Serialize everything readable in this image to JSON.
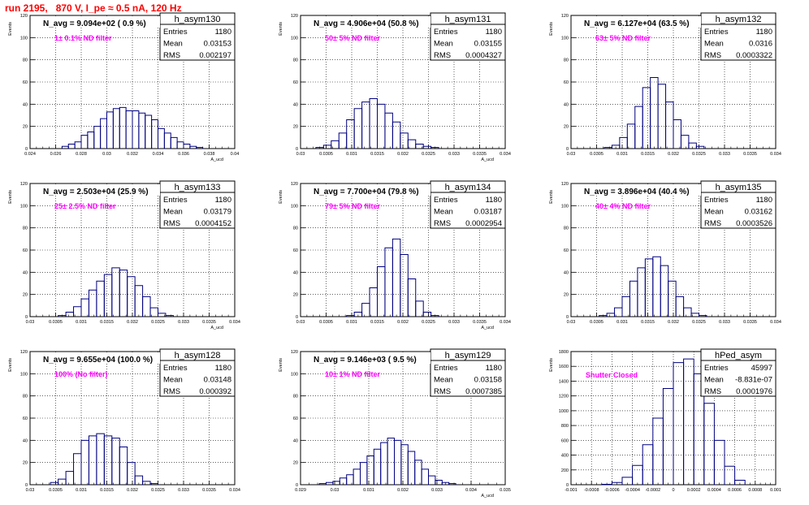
{
  "run_title": "run 2195,   870 V, I_pe ≈ 0.5 nA, 120 Hz",
  "stat_labels": {
    "entries": "Entries",
    "mean": "Mean",
    "rms": "RMS"
  },
  "colors": {
    "title": "#ff0000",
    "histogram": "#000080",
    "annotation": "#ff00ff",
    "grid": "#000000"
  },
  "chart_data": [
    {
      "type": "bar",
      "name": "h_asym130",
      "headline": "N_avg = 9.094e+02 ( 0.9 %)",
      "annotation": "1± 0.1% ND filter",
      "entries": "1180",
      "mean": "0.03153",
      "rms": "0.002197",
      "xlabel": "A_ucd",
      "ylabel": "Events",
      "xlim": [
        0.024,
        0.04
      ],
      "ylim": [
        0,
        120
      ],
      "xticks": [
        "0.024",
        "0.026",
        "0.028",
        "0.03",
        "0.032",
        "0.034",
        "0.036",
        "0.038",
        "0.04"
      ],
      "yticks": [
        "0",
        "20",
        "40",
        "60",
        "80",
        "100",
        "120"
      ],
      "centers": [
        0.02675,
        0.02725,
        0.02775,
        0.02825,
        0.02875,
        0.02925,
        0.02975,
        0.03025,
        0.03075,
        0.03125,
        0.03175,
        0.03225,
        0.03275,
        0.03325,
        0.03375,
        0.03425,
        0.03475,
        0.03525,
        0.03575,
        0.03625,
        0.03675,
        0.03725
      ],
      "values": [
        2,
        4,
        6,
        12,
        15,
        20,
        27,
        33,
        36,
        37,
        34,
        34,
        32,
        30,
        26,
        18,
        14,
        10,
        6,
        4,
        2,
        1
      ]
    },
    {
      "type": "bar",
      "name": "h_asym131",
      "headline": "N_avg = 4.906e+04 (50.8 %)",
      "annotation": "50± 5% ND filter",
      "entries": "1180",
      "mean": "0.03155",
      "rms": "0.0004327",
      "xlabel": "A_ucd",
      "ylabel": "Events",
      "xlim": [
        0.03,
        0.034
      ],
      "ylim": [
        0,
        120
      ],
      "xticks": [
        "0.03",
        "0.0305",
        "0.031",
        "0.0315",
        "0.032",
        "0.0325",
        "0.033",
        "0.0335",
        "0.034"
      ],
      "yticks": [
        "0",
        "20",
        "40",
        "60",
        "80",
        "100",
        "120"
      ],
      "centers": [
        0.030375,
        0.030525,
        0.030675,
        0.030825,
        0.030975,
        0.031125,
        0.031275,
        0.031425,
        0.031575,
        0.031725,
        0.031875,
        0.032025,
        0.032175,
        0.032325,
        0.032475,
        0.032625
      ],
      "values": [
        1,
        3,
        7,
        14,
        26,
        36,
        42,
        45,
        40,
        32,
        24,
        14,
        8,
        4,
        2,
        1
      ]
    },
    {
      "type": "bar",
      "name": "h_asym132",
      "headline": "N_avg = 6.127e+04 (63.5 %)",
      "annotation": "63± 5% ND filter",
      "entries": "1180",
      "mean": "0.0316",
      "rms": "0.0003322",
      "xlabel": "",
      "ylabel": "Events",
      "xlim": [
        0.03,
        0.034
      ],
      "ylim": [
        0,
        120
      ],
      "xticks": [
        "0.03",
        "0.0305",
        "0.031",
        "0.0315",
        "0.032",
        "0.0325",
        "0.033",
        "0.0335",
        "0.034"
      ],
      "yticks": [
        "0",
        "20",
        "40",
        "60",
        "80",
        "100",
        "120"
      ],
      "centers": [
        0.030725,
        0.030875,
        0.031025,
        0.031175,
        0.031325,
        0.031475,
        0.031625,
        0.031775,
        0.031925,
        0.032075,
        0.032225,
        0.032375,
        0.032525
      ],
      "values": [
        1,
        3,
        10,
        22,
        38,
        55,
        64,
        58,
        42,
        26,
        12,
        5,
        2
      ]
    },
    {
      "type": "bar",
      "name": "h_asym133",
      "headline": "N_avg = 2.503e+04 (25.9 %)",
      "annotation": "25± 2.5% ND filter",
      "entries": "1180",
      "mean": "0.03179",
      "rms": "0.0004152",
      "xlabel": "A_ucd",
      "ylabel": "Events",
      "xlim": [
        0.03,
        0.034
      ],
      "ylim": [
        0,
        120
      ],
      "xticks": [
        "0.03",
        "0.0305",
        "0.031",
        "0.0315",
        "0.032",
        "0.0325",
        "0.033",
        "0.0335",
        "0.034"
      ],
      "yticks": [
        "0",
        "20",
        "40",
        "60",
        "80",
        "100",
        "120"
      ],
      "centers": [
        0.030625,
        0.030775,
        0.030925,
        0.031075,
        0.031225,
        0.031375,
        0.031525,
        0.031675,
        0.031825,
        0.031975,
        0.032125,
        0.032275,
        0.032425,
        0.032575,
        0.032725
      ],
      "values": [
        1,
        4,
        9,
        16,
        24,
        32,
        38,
        44,
        42,
        36,
        28,
        18,
        8,
        3,
        1
      ]
    },
    {
      "type": "bar",
      "name": "h_asym134",
      "headline": "N_avg = 7.700e+04 (79.8 %)",
      "annotation": "79± 5% ND filter",
      "entries": "1180",
      "mean": "0.03187",
      "rms": "0.0002954",
      "xlabel": "A_ucd",
      "ylabel": "Events",
      "xlim": [
        0.03,
        0.034
      ],
      "ylim": [
        0,
        120
      ],
      "xticks": [
        "0.03",
        "0.0305",
        "0.031",
        "0.0315",
        "0.032",
        "0.0325",
        "0.033",
        "0.0335",
        "0.034"
      ],
      "yticks": [
        "0",
        "20",
        "40",
        "60",
        "80",
        "100",
        "120"
      ],
      "centers": [
        0.030975,
        0.031125,
        0.031275,
        0.031425,
        0.031575,
        0.031725,
        0.031875,
        0.032025,
        0.032175,
        0.032325,
        0.032475,
        0.032625
      ],
      "values": [
        1,
        4,
        12,
        26,
        45,
        62,
        70,
        56,
        34,
        14,
        4,
        1
      ]
    },
    {
      "type": "bar",
      "name": "h_asym135",
      "headline": "N_avg = 3.896e+04 (40.4 %)",
      "annotation": "40± 4% ND filter",
      "entries": "1180",
      "mean": "0.03162",
      "rms": "0.0003526",
      "xlabel": "",
      "ylabel": "Events",
      "xlim": [
        0.03,
        0.034
      ],
      "ylim": [
        0,
        120
      ],
      "xticks": [
        "0.03",
        "0.0305",
        "0.031",
        "0.0315",
        "0.032",
        "0.0325",
        "0.033",
        "0.0335",
        "0.034"
      ],
      "yticks": [
        "0",
        "20",
        "40",
        "60",
        "80",
        "100",
        "120"
      ],
      "centers": [
        0.030625,
        0.030775,
        0.030925,
        0.031075,
        0.031225,
        0.031375,
        0.031525,
        0.031675,
        0.031825,
        0.031975,
        0.032125,
        0.032275,
        0.032425,
        0.032575
      ],
      "values": [
        1,
        3,
        8,
        18,
        32,
        44,
        52,
        54,
        46,
        32,
        18,
        8,
        3,
        1
      ]
    },
    {
      "type": "bar",
      "name": "h_asym128",
      "headline": "N_avg = 9.655e+04 (100.0 %)",
      "annotation": "100% (No filter)",
      "entries": "1180",
      "mean": "0.03148",
      "rms": "0.000392",
      "xlabel": "",
      "ylabel": "Events",
      "xlim": [
        0.03,
        0.034
      ],
      "ylim": [
        0,
        120
      ],
      "xticks": [
        "0.03",
        "0.0305",
        "0.031",
        "0.0315",
        "0.032",
        "0.0325",
        "0.033",
        "0.0335",
        "0.034"
      ],
      "yticks": [
        "0",
        "20",
        "40",
        "60",
        "80",
        "100",
        "120"
      ],
      "centers": [
        0.030475,
        0.030625,
        0.030775,
        0.030925,
        0.031075,
        0.031225,
        0.031375,
        0.031525,
        0.031675,
        0.031825,
        0.031975,
        0.032125,
        0.032275,
        0.032425
      ],
      "values": [
        2,
        5,
        12,
        28,
        40,
        44,
        46,
        44,
        42,
        34,
        20,
        8,
        3,
        1
      ]
    },
    {
      "type": "bar",
      "name": "h_asym129",
      "headline": "N_avg = 9.146e+03 ( 9.5 %)",
      "annotation": "10± 1% ND filter",
      "entries": "1180",
      "mean": "0.03158",
      "rms": "0.0007385",
      "xlabel": "A_ucd",
      "ylabel": "Events",
      "xlim": [
        0.029,
        0.035
      ],
      "ylim": [
        0,
        120
      ],
      "xticks": [
        "0.029",
        "0.03",
        "0.031",
        "0.032",
        "0.033",
        "0.034",
        "0.035"
      ],
      "yticks": [
        "0",
        "20",
        "40",
        "60",
        "80",
        "100",
        "120"
      ],
      "centers": [
        0.02965,
        0.02985,
        0.03005,
        0.03025,
        0.03045,
        0.03065,
        0.03085,
        0.03105,
        0.03125,
        0.03145,
        0.03165,
        0.03185,
        0.03205,
        0.03225,
        0.03245,
        0.03265,
        0.03285,
        0.03305,
        0.03325,
        0.03345
      ],
      "values": [
        1,
        2,
        3,
        6,
        9,
        14,
        20,
        26,
        32,
        38,
        42,
        40,
        36,
        30,
        22,
        14,
        8,
        4,
        2,
        1
      ]
    },
    {
      "type": "bar",
      "name": "hPed_asym",
      "headline": "",
      "annotation": "Shutter Closed",
      "entries": "45997",
      "mean": "-8.831e-07",
      "rms": "0.0001976",
      "xlabel": "",
      "ylabel": "Events",
      "xlim": [
        -0.001,
        0.001
      ],
      "ylim": [
        0,
        1800
      ],
      "xticks": [
        "-0.001",
        "-0.0008",
        "-0.0006",
        "-0.0004",
        "-0.0002",
        "0",
        "0.0002",
        "0.0004",
        "0.0006",
        "0.0008",
        "0.001"
      ],
      "yticks": [
        "0",
        "200",
        "400",
        "600",
        "800",
        "1000",
        "1200",
        "1400",
        "1600",
        "1800"
      ],
      "centers": [
        -0.00065,
        -0.00055,
        -0.00045,
        -0.00035,
        -0.00025,
        -0.00015,
        -5e-05,
        5e-05,
        0.00015,
        0.00025,
        0.00035,
        0.00045,
        0.00055,
        0.00065
      ],
      "values": [
        5,
        30,
        100,
        260,
        540,
        900,
        1300,
        1650,
        1700,
        1500,
        1100,
        600,
        250,
        60
      ]
    }
  ]
}
